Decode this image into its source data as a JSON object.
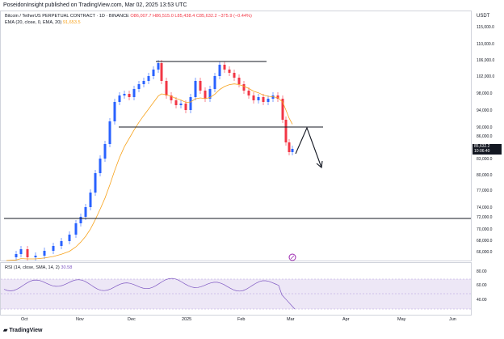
{
  "published": "PoseidonInsight published on TradingView.com, Mar 02, 2025 13:53 UTC",
  "legend": {
    "symbol": "Bitcoin / TetherUS PERPETUAL CONTRACT · 1D · BINANCE",
    "ohlc": "O86,007.7 H86,515.0 L85,438.4 C85,632.2 −375.9 (−0.44%)",
    "ema_label": "EMA (20, close, 0, EMA, 20)",
    "ema_value": "91,653.5"
  },
  "rsi_legend": {
    "label": "RSI (14, close, SMA, 14, 2)",
    "value": "30.58"
  },
  "currency": "USDT",
  "price_axis": [
    "115,000.0",
    "110,000.0",
    "106,000.0",
    "102,000.0",
    "98,000.0",
    "94,000.0",
    "90,000.0",
    "86,000.0",
    "83,000.0",
    "80,000.0",
    "77,000.0",
    "74,000.0",
    "72,000.0",
    "70,000.0",
    "68,000.0",
    "66,000.0"
  ],
  "rsi_axis": [
    "80.00",
    "60.00",
    "40.00"
  ],
  "time_axis": [
    "Oct",
    "Nov",
    "Dec",
    "2025",
    "Feb",
    "Mar",
    "Apr",
    "May",
    "Jun"
  ],
  "price_tag": {
    "price": "85,632.2",
    "countdown": "10:06:40"
  },
  "logo_text": "TradingView",
  "colors": {
    "up": "#2962ff",
    "down": "#f23645",
    "ema": "#f7a21b",
    "rsi": "#7e57c2",
    "rsi_band": "#ede7f6"
  }
}
